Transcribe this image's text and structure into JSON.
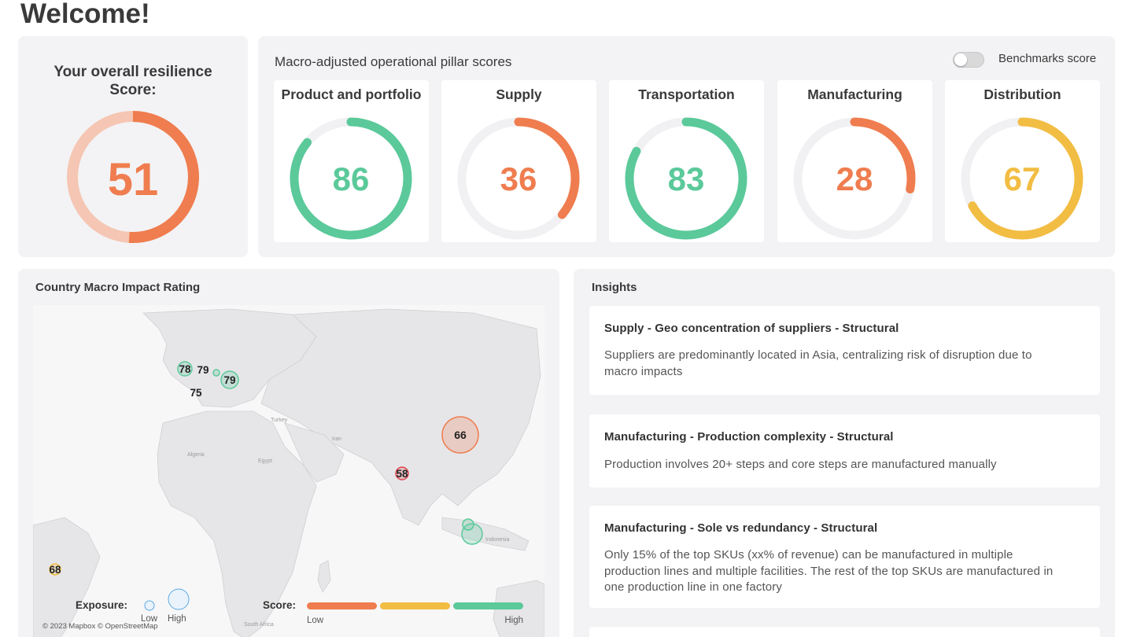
{
  "page": {
    "title": "Welcome!"
  },
  "overall": {
    "title_line1": "Your overall resilience",
    "title_line2": "Score:",
    "score": 51,
    "value": "51",
    "color": "#ef7d4f",
    "track": "#f5c6b3"
  },
  "pillars": {
    "title": "Macro-adjusted operational pillar scores",
    "benchmark_label": "Benchmarks score",
    "benchmark_on": false,
    "items": [
      {
        "name": "Product and portfolio",
        "score": 86,
        "value": "86",
        "color": "#5bc99a"
      },
      {
        "name": "Supply",
        "score": 36,
        "value": "36",
        "color": "#ef7d4f"
      },
      {
        "name": "Transportation",
        "score": 83,
        "value": "83",
        "color": "#5bc99a"
      },
      {
        "name": "Manufacturing",
        "score": 28,
        "value": "28",
        "color": "#ef7d4f"
      },
      {
        "name": "Distribution",
        "score": 67,
        "value": "67",
        "color": "#f2bd43"
      }
    ]
  },
  "map": {
    "title": "Country Macro Impact Rating",
    "place_labels": [
      "Turkey",
      "Iran",
      "Algeria",
      "Egypt",
      "Indonesia",
      "South Africa"
    ],
    "markers": [
      {
        "label": "78",
        "color": "#5bc99a"
      },
      {
        "label": "79",
        "color": "#5bc99a"
      },
      {
        "label": "",
        "color": "#5bc99a"
      },
      {
        "label": "79",
        "color": "#5bc99a"
      },
      {
        "label": "75",
        "color": "#5bc99a"
      },
      {
        "label": "66",
        "color": "#ef7d4f"
      },
      {
        "label": "58",
        "color": "#e0464d"
      },
      {
        "label": "",
        "color": "#5bc99a"
      },
      {
        "label": "",
        "color": "#5bc99a"
      },
      {
        "label": "68",
        "color": "#f2bd43"
      }
    ],
    "legend": {
      "exposure_label": "Exposure:",
      "low": "Low",
      "high": "High",
      "score_label": "Score:",
      "score_low": "Low",
      "score_high": "High",
      "score_colors": [
        "#ef7d4f",
        "#f2bd43",
        "#5bc99a"
      ]
    },
    "attribution": "© 2023 Mapbox © OpenStreetMap"
  },
  "insights": {
    "title": "Insights",
    "items": [
      {
        "title": "Supply - Geo concentration of suppliers - Structural",
        "lines": [
          "Suppliers are predominantly located in Asia, centralizing risk of disruption due to",
          "macro impacts"
        ]
      },
      {
        "title": "Manufacturing - Production complexity - Structural",
        "lines": [
          "Production involves 20+ steps and core steps are manufactured manually"
        ]
      },
      {
        "title": "Manufacturing - Sole vs redundancy - Structural",
        "lines": [
          "Only 15% of the top SKUs (xx% of revenue) can be manufactured in multiple",
          "production lines and multiple facilities. The rest of the top SKUs are manufactured in",
          "one production line in one factory"
        ]
      }
    ]
  }
}
